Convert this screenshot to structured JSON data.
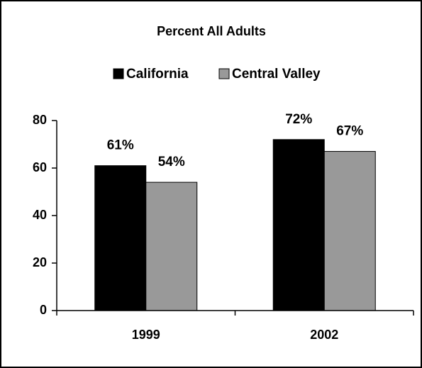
{
  "chart_data": {
    "type": "bar",
    "title": "Percent All Adults",
    "categories": [
      "1999",
      "2002"
    ],
    "series": [
      {
        "name": "California",
        "color": "#000000",
        "values": [
          61,
          72
        ],
        "value_labels": [
          "61%",
          "72%"
        ]
      },
      {
        "name": "Central Valley",
        "color": "#999999",
        "values": [
          54,
          67
        ],
        "value_labels": [
          "54%",
          "67%"
        ]
      }
    ],
    "ylim": [
      0,
      80
    ],
    "yticks": [
      0,
      20,
      40,
      60,
      80
    ],
    "legend": "top"
  }
}
